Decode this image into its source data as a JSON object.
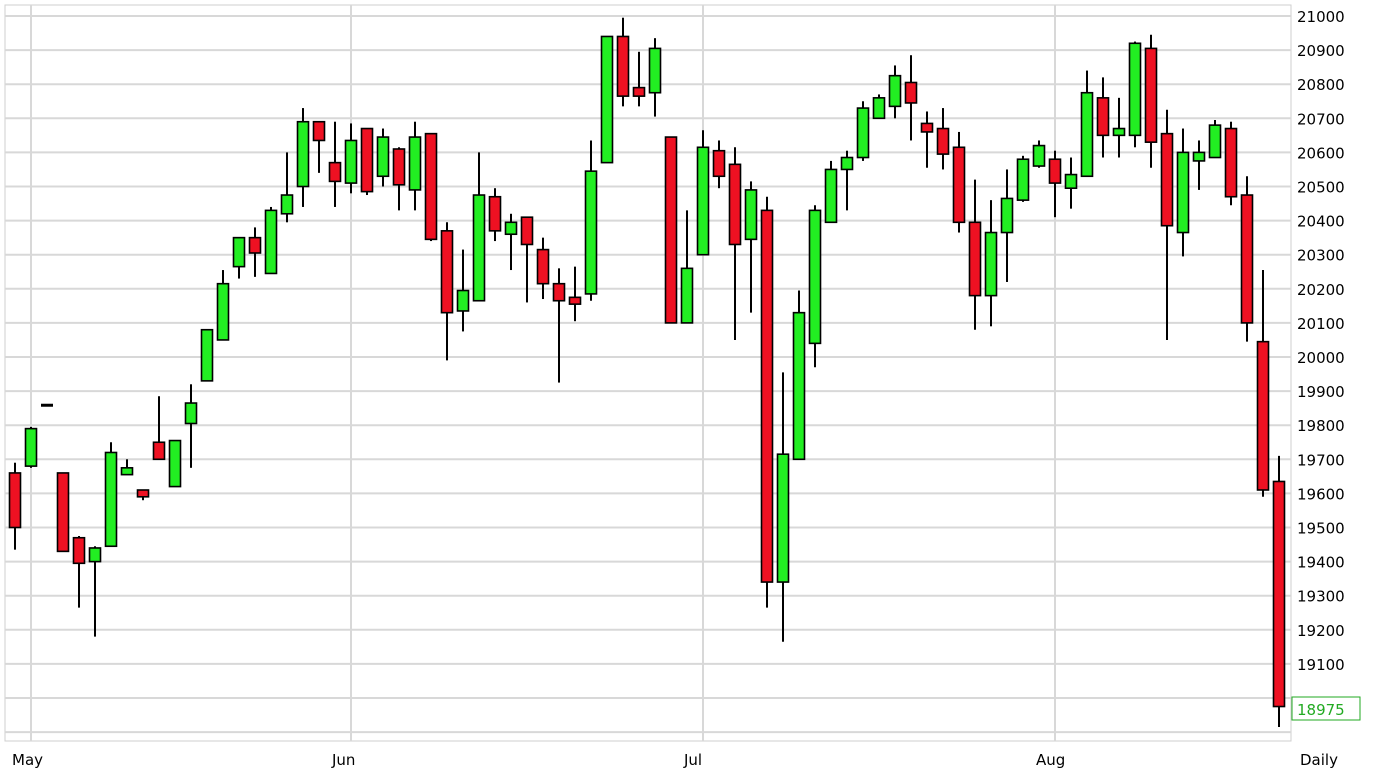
{
  "chart_data": {
    "type": "candlestick",
    "title": "",
    "xlabel": "",
    "ylabel": "",
    "period_label": "Daily",
    "ylim": [
      18900,
      21000
    ],
    "yticks": [
      21000,
      20900,
      20800,
      20700,
      20600,
      20500,
      20400,
      20300,
      20200,
      20100,
      20000,
      19900,
      19800,
      19700,
      19600,
      19500,
      19400,
      19300,
      19200,
      19100
    ],
    "grid": true,
    "month_ticks": [
      {
        "label": "May",
        "index": 1
      },
      {
        "label": "Jun",
        "index": 21.0
      },
      {
        "label": "Jul",
        "index": 43
      },
      {
        "label": "Aug",
        "index": 65
      }
    ],
    "last_value": "18975",
    "colors": {
      "up": "#22ee22",
      "down": "#ee1122",
      "grid": "#d8d8d8",
      "last_value": "#22aa22"
    },
    "ohlc": [
      [
        19660,
        19690,
        19435,
        19500
      ],
      [
        19680,
        19795,
        19675,
        19790
      ],
      [
        19860,
        19860,
        19860,
        19860
      ],
      [
        19660,
        19660,
        19430,
        19430
      ],
      [
        19470,
        19475,
        19265,
        19395
      ],
      [
        19400,
        19445,
        19180,
        19440
      ],
      [
        19445,
        19750,
        19445,
        19720
      ],
      [
        19655,
        19700,
        19655,
        19675
      ],
      [
        19610,
        19610,
        19580,
        19590
      ],
      [
        19750,
        19885,
        19700,
        19700
      ],
      [
        19620,
        19755,
        19620,
        19755
      ],
      [
        19805,
        19920,
        19675,
        19865
      ],
      [
        19930,
        20080,
        19930,
        20080
      ],
      [
        20050,
        20255,
        20050,
        20215
      ],
      [
        20265,
        20350,
        20230,
        20350
      ],
      [
        20350,
        20380,
        20235,
        20305
      ],
      [
        20245,
        20440,
        20245,
        20430
      ],
      [
        20420,
        20600,
        20395,
        20475
      ],
      [
        20500,
        20730,
        20440,
        20690
      ],
      [
        20690,
        20690,
        20540,
        20635
      ],
      [
        20570,
        20690,
        20440,
        20515
      ],
      [
        20510,
        20685,
        20480,
        20635
      ],
      [
        20670,
        20670,
        20475,
        20485
      ],
      [
        20530,
        20670,
        20500,
        20645
      ],
      [
        20610,
        20615,
        20430,
        20505
      ],
      [
        20490,
        20690,
        20430,
        20645
      ],
      [
        20655,
        20655,
        20340,
        20345
      ],
      [
        20370,
        20395,
        19990,
        20130
      ],
      [
        20135,
        20315,
        20075,
        20195
      ],
      [
        20165,
        20600,
        20165,
        20475
      ],
      [
        20470,
        20495,
        20340,
        20370
      ],
      [
        20360,
        20420,
        20255,
        20395
      ],
      [
        20410,
        20410,
        20160,
        20330
      ],
      [
        20315,
        20350,
        20170,
        20215
      ],
      [
        20215,
        20260,
        19925,
        20165
      ],
      [
        20175,
        20265,
        20105,
        20155
      ],
      [
        20185,
        20635,
        20165,
        20545
      ],
      [
        20570,
        20940,
        20570,
        20940
      ],
      [
        20940,
        20995,
        20735,
        20765
      ],
      [
        20790,
        20895,
        20735,
        20765
      ],
      [
        20775,
        20935,
        20705,
        20905
      ],
      [
        20645,
        20645,
        20100,
        20100
      ],
      [
        20100,
        20430,
        20100,
        20260
      ],
      [
        20300,
        20665,
        20300,
        20615
      ],
      [
        20605,
        20635,
        20495,
        20530
      ],
      [
        20565,
        20615,
        20050,
        20330
      ],
      [
        20345,
        20515,
        20130,
        20490
      ],
      [
        20430,
        20470,
        19265,
        19340
      ],
      [
        19340,
        19955,
        19165,
        19715
      ],
      [
        19700,
        20195,
        19700,
        20130
      ],
      [
        20040,
        20445,
        19970,
        20430
      ],
      [
        20395,
        20575,
        20395,
        20550
      ],
      [
        20550,
        20605,
        20430,
        20585
      ],
      [
        20585,
        20750,
        20575,
        20730
      ],
      [
        20700,
        20770,
        20700,
        20760
      ],
      [
        20735,
        20855,
        20700,
        20825
      ],
      [
        20805,
        20885,
        20635,
        20745
      ],
      [
        20685,
        20720,
        20555,
        20660
      ],
      [
        20670,
        20730,
        20550,
        20595
      ],
      [
        20615,
        20660,
        20365,
        20395
      ],
      [
        20395,
        20520,
        20080,
        20180
      ],
      [
        20180,
        20460,
        20090,
        20365
      ],
      [
        20365,
        20550,
        20220,
        20465
      ],
      [
        20460,
        20590,
        20455,
        20580
      ],
      [
        20560,
        20635,
        20555,
        20620
      ],
      [
        20580,
        20605,
        20410,
        20510
      ],
      [
        20495,
        20585,
        20435,
        20535
      ],
      [
        20530,
        20840,
        20530,
        20775
      ],
      [
        20760,
        20820,
        20585,
        20650
      ],
      [
        20650,
        20760,
        20585,
        20670
      ],
      [
        20650,
        20925,
        20615,
        20920
      ],
      [
        20905,
        20945,
        20555,
        20630
      ],
      [
        20655,
        20725,
        20050,
        20385
      ],
      [
        20365,
        20670,
        20295,
        20600
      ],
      [
        20575,
        20635,
        20490,
        20600
      ],
      [
        20585,
        20695,
        20585,
        20680
      ],
      [
        20670,
        20690,
        20445,
        20470
      ],
      [
        20475,
        20530,
        20045,
        20100
      ],
      [
        20045,
        20255,
        19590,
        19610
      ],
      [
        19635,
        19710,
        18915,
        18975
      ]
    ]
  }
}
